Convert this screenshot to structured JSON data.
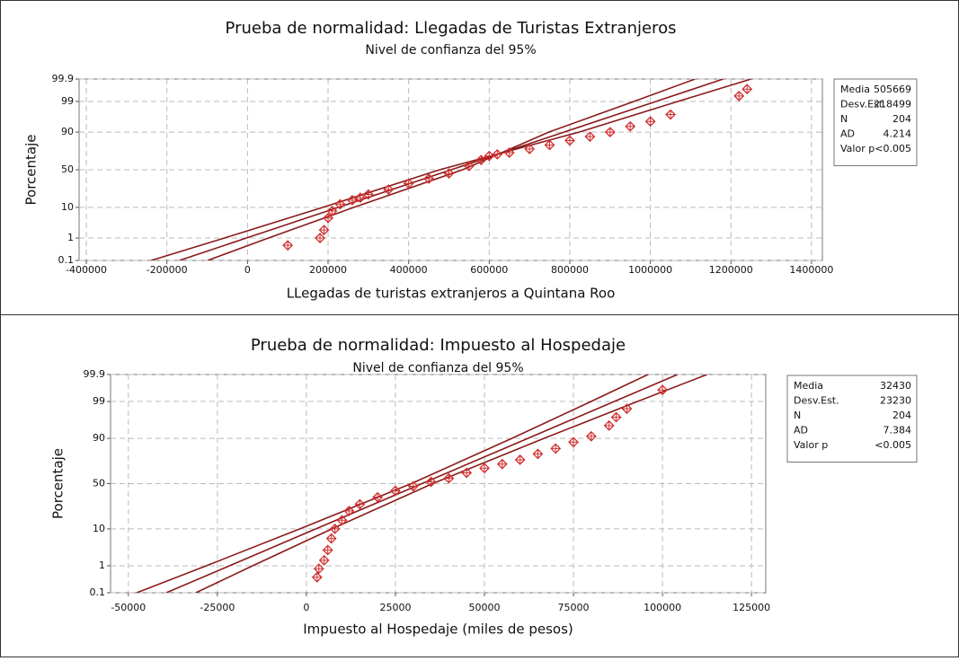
{
  "chart_data": [
    {
      "type": "probability",
      "title": "Prueba de normalidad: Llegadas de Turistas Extranjeros",
      "subtitle": "Nivel de confianza del 95%",
      "x_label": "LLegadas de turistas extranjeros a Quintana Roo",
      "y_label": "Porcentaje",
      "xlim": [
        -418000,
        1427000
      ],
      "xticks": [
        -400000,
        -200000,
        0,
        200000,
        400000,
        600000,
        800000,
        1000000,
        1200000,
        1400000
      ],
      "ylim": [
        0.1,
        99.9
      ],
      "yticks": [
        0.1,
        1,
        10,
        50,
        90,
        99,
        99.9
      ],
      "yscale": "probability",
      "grid": true,
      "stats": [
        {
          "label": "Media",
          "value": 505669
        },
        {
          "label": "Desv.Est.",
          "value": 218499
        },
        {
          "label": "N",
          "value": 204
        },
        {
          "label": "AD",
          "value": 4.214
        },
        {
          "label": "Valor p",
          "value": "<0.005"
        }
      ],
      "series": [
        {
          "color": "#8b1a1a",
          "line": true,
          "x": [
            -239000,
            -57000,
            187000,
            477000,
            823000,
            1068000,
            1250000
          ],
          "values": [
            0.1,
            1,
            10,
            50,
            90,
            99,
            99.9
          ]
        },
        {
          "color": "#8b1a1a",
          "line": true,
          "x": [
            -169000,
            -2600,
            225600,
            505700,
            785700,
            1013900,
            1180800
          ],
          "values": [
            0.1,
            1,
            10,
            50,
            90,
            99,
            99.9
          ]
        },
        {
          "color": "#8b1a1a",
          "line": true,
          "x": [
            -99000,
            52000,
            264000,
            534000,
            748000,
            959000,
            1111000
          ],
          "values": [
            0.1,
            1,
            10,
            50,
            90,
            99,
            99.9
          ]
        },
        {
          "color": "#d03030",
          "marker": "diamond",
          "x": [
            100000,
            180000,
            190000,
            200000,
            210000,
            230000,
            260000,
            280000,
            300000,
            350000,
            400000,
            450000,
            500000,
            550000,
            580000,
            600000,
            620000,
            650000,
            700000,
            750000,
            800000,
            850000,
            900000,
            950000,
            1000000,
            1050000,
            1220000,
            1240000
          ],
          "values": [
            0.5,
            1,
            2,
            5,
            8,
            12,
            15,
            17,
            20,
            25,
            32,
            38,
            45,
            55,
            63,
            68,
            70,
            72,
            76,
            80,
            84,
            87,
            90,
            93,
            95,
            97,
            99.4,
            99.7
          ]
        }
      ]
    },
    {
      "type": "probability",
      "title": "Prueba de normalidad: Impuesto al Hospedaje",
      "subtitle": "Nivel de confianza del 95%",
      "x_label": "Impuesto al Hospedaje (miles de pesos)",
      "y_label": "Porcentaje",
      "xlim": [
        -55000,
        129000
      ],
      "xticks": [
        -50000,
        -25000,
        0,
        25000,
        50000,
        75000,
        100000,
        125000
      ],
      "ylim": [
        0.1,
        99.9
      ],
      "yticks": [
        0.1,
        1,
        10,
        50,
        90,
        99,
        99.9
      ],
      "yscale": "probability",
      "grid": true,
      "stats": [
        {
          "label": "Media",
          "value": 32430
        },
        {
          "label": "Desv.Est.",
          "value": 23230
        },
        {
          "label": "N",
          "value": 204
        },
        {
          "label": "AD",
          "value": 7.384
        },
        {
          "label": "Valor p",
          "value": "<0.005"
        }
      ],
      "series": [
        {
          "color": "#8b1a1a",
          "line": true,
          "x": [
            -47650,
            -28110,
            -1840,
            29430,
            57700,
            79970,
            95910
          ],
          "values": [
            0.1,
            1,
            10,
            50,
            90,
            99,
            99.9
          ]
        },
        {
          "color": "#8b1a1a",
          "line": true,
          "x": [
            -39350,
            -21610,
            2660,
            32430,
            62200,
            86470,
            104210
          ],
          "values": [
            0.1,
            1,
            10,
            50,
            90,
            99,
            99.9
          ]
        },
        {
          "color": "#8b1a1a",
          "line": true,
          "x": [
            -31050,
            -15110,
            7160,
            35430,
            66700,
            92970,
            112510
          ],
          "values": [
            0.1,
            1,
            10,
            50,
            90,
            99,
            99.9
          ]
        },
        {
          "color": "#d03030",
          "marker": "diamond",
          "x": [
            3000,
            3500,
            5000,
            6000,
            7000,
            8000,
            10000,
            12000,
            15000,
            20000,
            25000,
            30000,
            35000,
            40000,
            45000,
            50000,
            55000,
            60000,
            65000,
            70000,
            75000,
            80000,
            85000,
            87000,
            90000,
            100000
          ],
          "values": [
            0.4,
            0.8,
            1.5,
            3,
            6,
            10,
            15,
            22,
            28,
            35,
            42,
            47,
            52,
            56,
            62,
            67,
            71,
            75,
            80,
            84,
            88,
            91,
            95,
            97,
            98.3,
            99.6
          ]
        }
      ]
    }
  ]
}
